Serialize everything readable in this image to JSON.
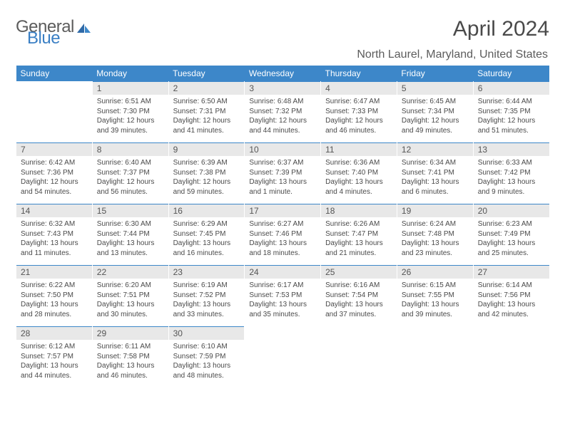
{
  "brand": {
    "part1": "General",
    "part2": "Blue"
  },
  "title": "April 2024",
  "location": "North Laurel, Maryland, United States",
  "weekdays": [
    "Sunday",
    "Monday",
    "Tuesday",
    "Wednesday",
    "Thursday",
    "Friday",
    "Saturday"
  ],
  "header_bg": "#3d87c9",
  "daynum_bg": "#e8e8e8",
  "weeks": [
    [
      null,
      {
        "n": "1",
        "sr": "6:51 AM",
        "ss": "7:30 PM",
        "dl": "12 hours and 39 minutes."
      },
      {
        "n": "2",
        "sr": "6:50 AM",
        "ss": "7:31 PM",
        "dl": "12 hours and 41 minutes."
      },
      {
        "n": "3",
        "sr": "6:48 AM",
        "ss": "7:32 PM",
        "dl": "12 hours and 44 minutes."
      },
      {
        "n": "4",
        "sr": "6:47 AM",
        "ss": "7:33 PM",
        "dl": "12 hours and 46 minutes."
      },
      {
        "n": "5",
        "sr": "6:45 AM",
        "ss": "7:34 PM",
        "dl": "12 hours and 49 minutes."
      },
      {
        "n": "6",
        "sr": "6:44 AM",
        "ss": "7:35 PM",
        "dl": "12 hours and 51 minutes."
      }
    ],
    [
      {
        "n": "7",
        "sr": "6:42 AM",
        "ss": "7:36 PM",
        "dl": "12 hours and 54 minutes."
      },
      {
        "n": "8",
        "sr": "6:40 AM",
        "ss": "7:37 PM",
        "dl": "12 hours and 56 minutes."
      },
      {
        "n": "9",
        "sr": "6:39 AM",
        "ss": "7:38 PM",
        "dl": "12 hours and 59 minutes."
      },
      {
        "n": "10",
        "sr": "6:37 AM",
        "ss": "7:39 PM",
        "dl": "13 hours and 1 minute."
      },
      {
        "n": "11",
        "sr": "6:36 AM",
        "ss": "7:40 PM",
        "dl": "13 hours and 4 minutes."
      },
      {
        "n": "12",
        "sr": "6:34 AM",
        "ss": "7:41 PM",
        "dl": "13 hours and 6 minutes."
      },
      {
        "n": "13",
        "sr": "6:33 AM",
        "ss": "7:42 PM",
        "dl": "13 hours and 9 minutes."
      }
    ],
    [
      {
        "n": "14",
        "sr": "6:32 AM",
        "ss": "7:43 PM",
        "dl": "13 hours and 11 minutes."
      },
      {
        "n": "15",
        "sr": "6:30 AM",
        "ss": "7:44 PM",
        "dl": "13 hours and 13 minutes."
      },
      {
        "n": "16",
        "sr": "6:29 AM",
        "ss": "7:45 PM",
        "dl": "13 hours and 16 minutes."
      },
      {
        "n": "17",
        "sr": "6:27 AM",
        "ss": "7:46 PM",
        "dl": "13 hours and 18 minutes."
      },
      {
        "n": "18",
        "sr": "6:26 AM",
        "ss": "7:47 PM",
        "dl": "13 hours and 21 minutes."
      },
      {
        "n": "19",
        "sr": "6:24 AM",
        "ss": "7:48 PM",
        "dl": "13 hours and 23 minutes."
      },
      {
        "n": "20",
        "sr": "6:23 AM",
        "ss": "7:49 PM",
        "dl": "13 hours and 25 minutes."
      }
    ],
    [
      {
        "n": "21",
        "sr": "6:22 AM",
        "ss": "7:50 PM",
        "dl": "13 hours and 28 minutes."
      },
      {
        "n": "22",
        "sr": "6:20 AM",
        "ss": "7:51 PM",
        "dl": "13 hours and 30 minutes."
      },
      {
        "n": "23",
        "sr": "6:19 AM",
        "ss": "7:52 PM",
        "dl": "13 hours and 33 minutes."
      },
      {
        "n": "24",
        "sr": "6:17 AM",
        "ss": "7:53 PM",
        "dl": "13 hours and 35 minutes."
      },
      {
        "n": "25",
        "sr": "6:16 AM",
        "ss": "7:54 PM",
        "dl": "13 hours and 37 minutes."
      },
      {
        "n": "26",
        "sr": "6:15 AM",
        "ss": "7:55 PM",
        "dl": "13 hours and 39 minutes."
      },
      {
        "n": "27",
        "sr": "6:14 AM",
        "ss": "7:56 PM",
        "dl": "13 hours and 42 minutes."
      }
    ],
    [
      {
        "n": "28",
        "sr": "6:12 AM",
        "ss": "7:57 PM",
        "dl": "13 hours and 44 minutes."
      },
      {
        "n": "29",
        "sr": "6:11 AM",
        "ss": "7:58 PM",
        "dl": "13 hours and 46 minutes."
      },
      {
        "n": "30",
        "sr": "6:10 AM",
        "ss": "7:59 PM",
        "dl": "13 hours and 48 minutes."
      },
      null,
      null,
      null,
      null
    ]
  ]
}
